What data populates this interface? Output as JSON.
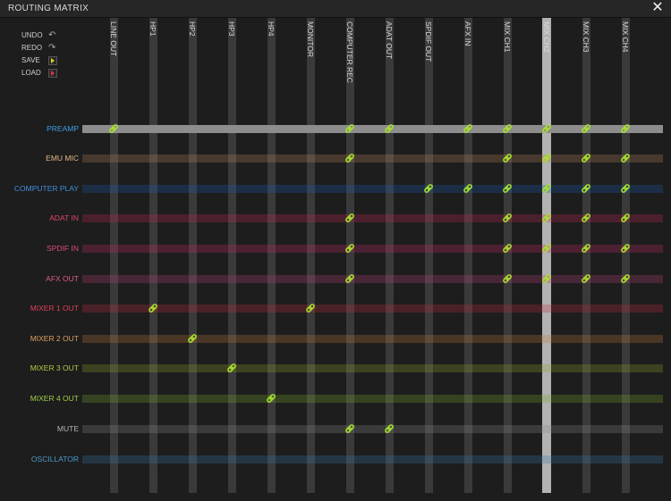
{
  "window": {
    "title": "ROUTING MATRIX",
    "close_symbol": "✕"
  },
  "controls": [
    {
      "label": "UNDO",
      "icon": "undo-icon"
    },
    {
      "label": "REDO",
      "icon": "redo-icon"
    },
    {
      "label": "SAVE",
      "icon": "save-icon"
    },
    {
      "label": "LOAD",
      "icon": "load-icon"
    }
  ],
  "colors": {
    "background": "#1d1d1d",
    "link": "#a8e22a",
    "selected_row": "#8d8d8d",
    "selected_column": "#c8c8c8"
  },
  "matrix": {
    "selected_row": "PREAMP",
    "selected_column": "MIX CH2",
    "columns": [
      "LINE OUT",
      "HP1",
      "HP2",
      "HP3",
      "HP4",
      "MONITOR",
      "COMPUTER REC",
      "ADAT OUT",
      "SPDIF OUT",
      "AFX IN",
      "MIX CH1",
      "MIX CH2",
      "MIX CH3",
      "MIX CH4"
    ],
    "rows": [
      {
        "label": "PREAMP",
        "color": "#3aa0e6",
        "bar_color": "#8d8d8d",
        "links": [
          "LINE OUT",
          "COMPUTER REC",
          "ADAT OUT",
          "AFX IN",
          "MIX CH1",
          "MIX CH2",
          "MIX CH3",
          "MIX CH4"
        ]
      },
      {
        "label": "EMU MIC",
        "color": "#e2b98b",
        "bar_color": "#b7855a",
        "links": [
          "COMPUTER REC",
          "MIX CH1",
          "MIX CH2",
          "MIX CH3",
          "MIX CH4"
        ]
      },
      {
        "label": "COMPUTER PLAY",
        "color": "#3f8fe0",
        "bar_color": "#1c5fb4",
        "links": [
          "SPDIF OUT",
          "AFX IN",
          "MIX CH1",
          "MIX CH2",
          "MIX CH3",
          "MIX CH4"
        ]
      },
      {
        "label": "ADAT IN",
        "color": "#e0446a",
        "bar_color": "#c12a55",
        "links": [
          "COMPUTER REC",
          "MIX CH1",
          "MIX CH2",
          "MIX CH3",
          "MIX CH4"
        ]
      },
      {
        "label": "SPDIF IN",
        "color": "#e04a78",
        "bar_color": "#c4306a",
        "links": [
          "COMPUTER REC",
          "MIX CH1",
          "MIX CH2",
          "MIX CH3",
          "MIX CH4"
        ]
      },
      {
        "label": "AFX OUT",
        "color": "#e05a8a",
        "bar_color": "#b8457a",
        "links": [
          "COMPUTER REC",
          "MIX CH1",
          "MIX CH2",
          "MIX CH3",
          "MIX CH4"
        ]
      },
      {
        "label": "MIXER 1 OUT",
        "color": "#e0405a",
        "bar_color": "#c23040",
        "links": [
          "HP1",
          "MONITOR"
        ]
      },
      {
        "label": "MIXER 2 OUT",
        "color": "#e0a060",
        "bar_color": "#c07a3c",
        "links": [
          "HP2"
        ]
      },
      {
        "label": "MIXER 3 OUT",
        "color": "#b8c840",
        "bar_color": "#96a228",
        "links": [
          "HP3"
        ]
      },
      {
        "label": "MIXER 4 OUT",
        "color": "#9fd04a",
        "bar_color": "#7aa82e",
        "links": [
          "HP4"
        ]
      },
      {
        "label": "MUTE",
        "color": "#b5b5b5",
        "bar_color": "#8a8a8a",
        "links": [
          "COMPUTER REC",
          "ADAT OUT"
        ]
      },
      {
        "label": "OSCILLATOR",
        "color": "#4a9ac8",
        "bar_color": "#3a7aa8",
        "links": []
      }
    ]
  }
}
